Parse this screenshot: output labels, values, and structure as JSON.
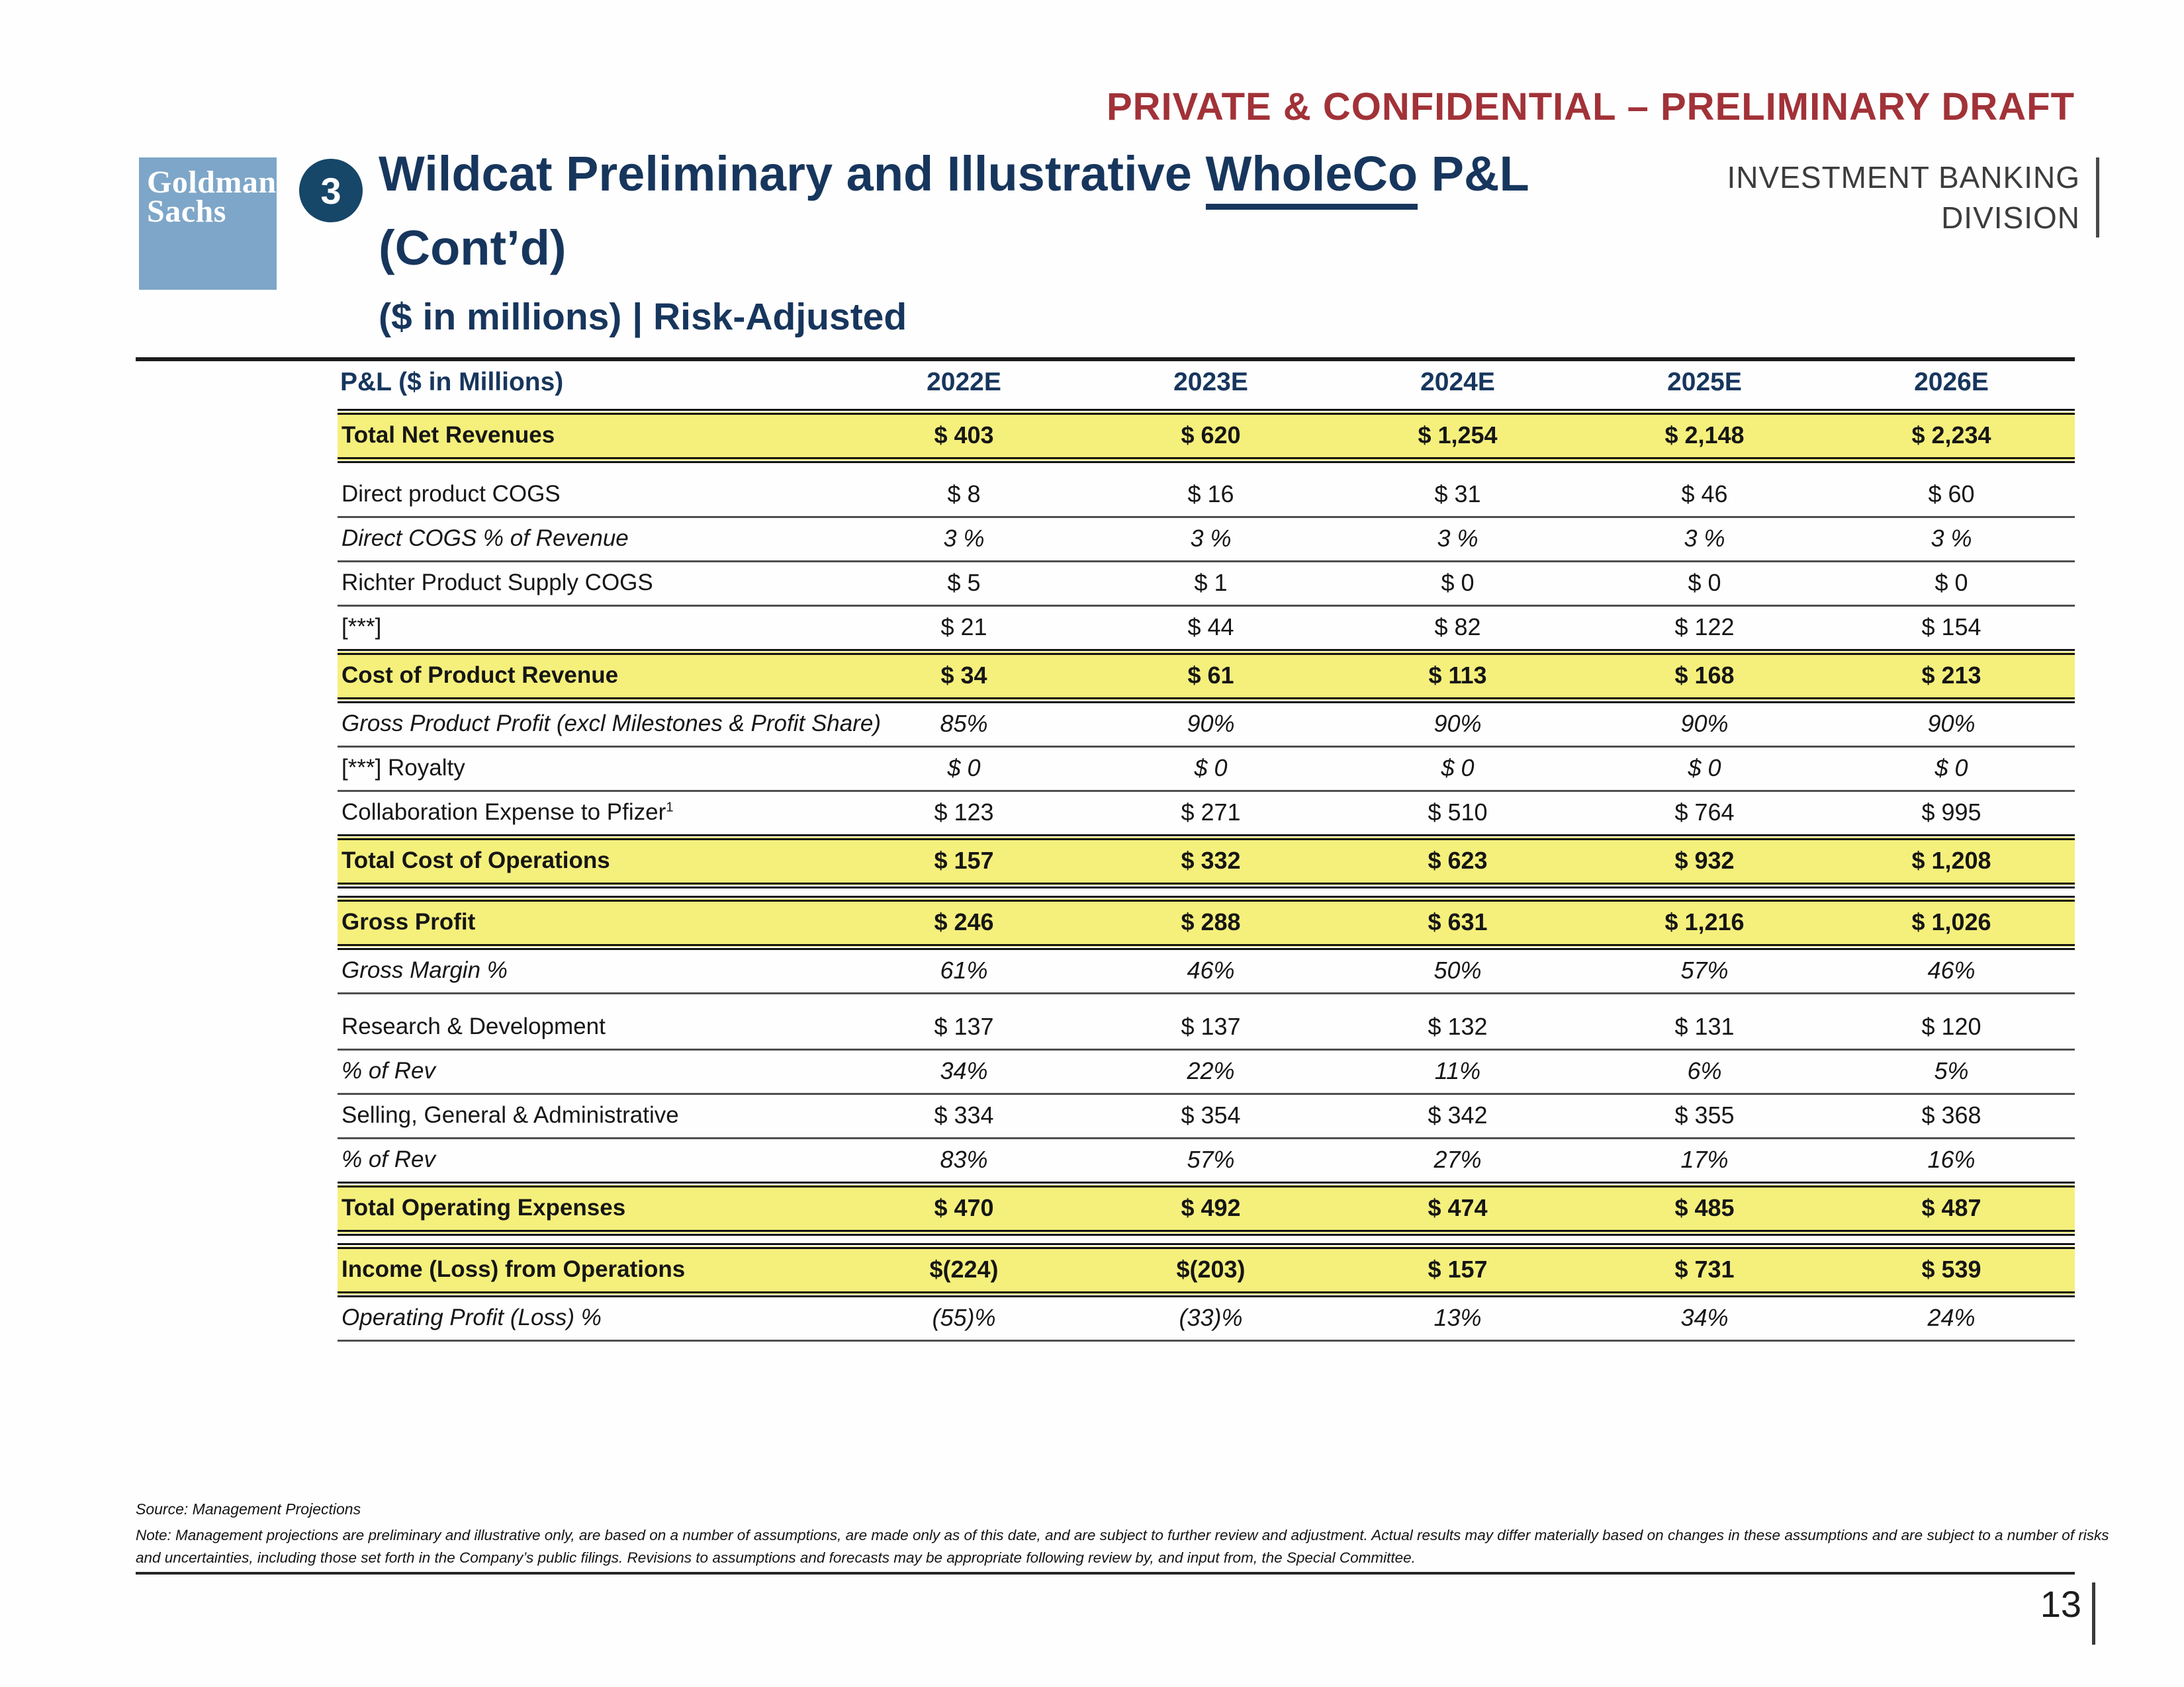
{
  "colors": {
    "navy": "#17365d",
    "red": "#a13238",
    "highlight_yellow": "#f5f07c",
    "logo_blue": "#7ea6c8",
    "division_gray": "#3c3c3c"
  },
  "header": {
    "classification": "PRIVATE & CONFIDENTIAL – PRELIMINARY DRAFT",
    "logo_line1": "Goldman",
    "logo_line2": "Sachs",
    "section_number": "3",
    "title_pre": "Wildcat Preliminary and Illustrative ",
    "title_underlined": "WholeCo",
    "title_post": " P&L",
    "title_line2": "(Cont’d)",
    "division_line1": "INVESTMENT BANKING",
    "division_line2": "DIVISION",
    "subtitle": "($ in millions) | Risk-Adjusted"
  },
  "table": {
    "header_label": "P&L ($ in Millions)",
    "years": [
      "2022E",
      "2023E",
      "2024E",
      "2025E",
      "2026E"
    ],
    "rows": [
      {
        "style": "highlight",
        "label": "Total Net Revenues",
        "values": [
          "$ 403",
          "$ 620",
          "$ 1,254",
          "$ 2,148",
          "$ 2,234"
        ]
      },
      {
        "style": "spacer"
      },
      {
        "style": "item",
        "sep": "thin",
        "label": "Direct product COGS",
        "values": [
          "$ 8",
          "$ 16",
          "$ 31",
          "$ 46",
          "$ 60"
        ]
      },
      {
        "style": "pct",
        "sep": "thin",
        "label": "Direct COGS % of Revenue",
        "values": [
          "3 %",
          "3 %",
          "3 %",
          "3 %",
          "3 %"
        ]
      },
      {
        "style": "item",
        "sep": "thin",
        "label": "Richter Product Supply COGS",
        "values": [
          "$ 5",
          "$ 1",
          "$ 0",
          "$ 0",
          "$ 0"
        ]
      },
      {
        "style": "item",
        "sep": "none",
        "label": "[***]",
        "values": [
          "$ 21",
          "$ 44",
          "$ 82",
          "$ 122",
          "$ 154"
        ]
      },
      {
        "style": "highlight",
        "label": "Cost of Product Revenue",
        "values": [
          "$ 34",
          "$ 61",
          "$ 113",
          "$ 168",
          "$ 213"
        ]
      },
      {
        "style": "pct",
        "sep": "thin",
        "label": "Gross Product Profit (excl Milestones & Profit Share)",
        "values": [
          "85%",
          "90%",
          "90%",
          "90%",
          "90%"
        ]
      },
      {
        "style": "item",
        "sep": "thin",
        "italic_values": true,
        "label": "[***] Royalty",
        "values": [
          "$ 0",
          "$ 0",
          "$ 0",
          "$ 0",
          "$ 0"
        ]
      },
      {
        "style": "item",
        "sep": "none",
        "label": "Collaboration Expense to Pfizer",
        "sup": "1",
        "values": [
          "$ 123",
          "$ 271",
          "$ 510",
          "$ 764",
          "$ 995"
        ]
      },
      {
        "style": "highlight",
        "label": "Total Cost of Operations",
        "values": [
          "$ 157",
          "$ 332",
          "$ 623",
          "$ 932",
          "$ 1,208"
        ]
      },
      {
        "style": "spacer"
      },
      {
        "style": "highlight",
        "label": "Gross Profit",
        "values": [
          "$ 246",
          "$ 288",
          "$ 631",
          "$ 1,216",
          "$ 1,026"
        ]
      },
      {
        "style": "pct",
        "sep": "thin",
        "label": "Gross Margin %",
        "values": [
          "61%",
          "46%",
          "50%",
          "57%",
          "46%"
        ]
      },
      {
        "style": "spacer"
      },
      {
        "style": "item",
        "sep": "thin",
        "label": "Research & Development",
        "values": [
          "$ 137",
          "$ 137",
          "$ 132",
          "$ 131",
          "$ 120"
        ]
      },
      {
        "style": "pct",
        "sep": "thin",
        "label": "% of Rev",
        "values": [
          "34%",
          "22%",
          "11%",
          "6%",
          "5%"
        ]
      },
      {
        "style": "item",
        "sep": "thin",
        "label": "Selling, General & Administrative",
        "values": [
          "$ 334",
          "$ 354",
          "$ 342",
          "$ 355",
          "$ 368"
        ]
      },
      {
        "style": "pct",
        "sep": "none",
        "label": "% of Rev",
        "values": [
          "83%",
          "57%",
          "27%",
          "17%",
          "16%"
        ]
      },
      {
        "style": "highlight",
        "label": "Total Operating Expenses",
        "values": [
          "$ 470",
          "$ 492",
          "$ 474",
          "$ 485",
          "$ 487"
        ]
      },
      {
        "style": "spacer"
      },
      {
        "style": "highlight",
        "label": "Income (Loss) from Operations",
        "values": [
          "$(224)",
          "$(203)",
          "$ 157",
          "$ 731",
          "$ 539"
        ]
      },
      {
        "style": "pct",
        "sep": "thin",
        "label": "Operating Profit (Loss) %",
        "values": [
          "(55)%",
          "(33)%",
          "13%",
          "34%",
          "24%"
        ]
      }
    ]
  },
  "footer": {
    "source": "Source: Management Projections",
    "note_line1": "Note: Management projections are preliminary and illustrative only, are based on a number of assumptions, are made only as of this date, and are subject to further review and adjustment. Actual results may differ materially based on changes in these assumptions and are subject to a number of risks",
    "note_line2": "and uncertainties, including those set forth in the Company’s public filings. Revisions to assumptions and forecasts may be appropriate following review by, and input from, the Special Committee.",
    "page_number": "13"
  }
}
